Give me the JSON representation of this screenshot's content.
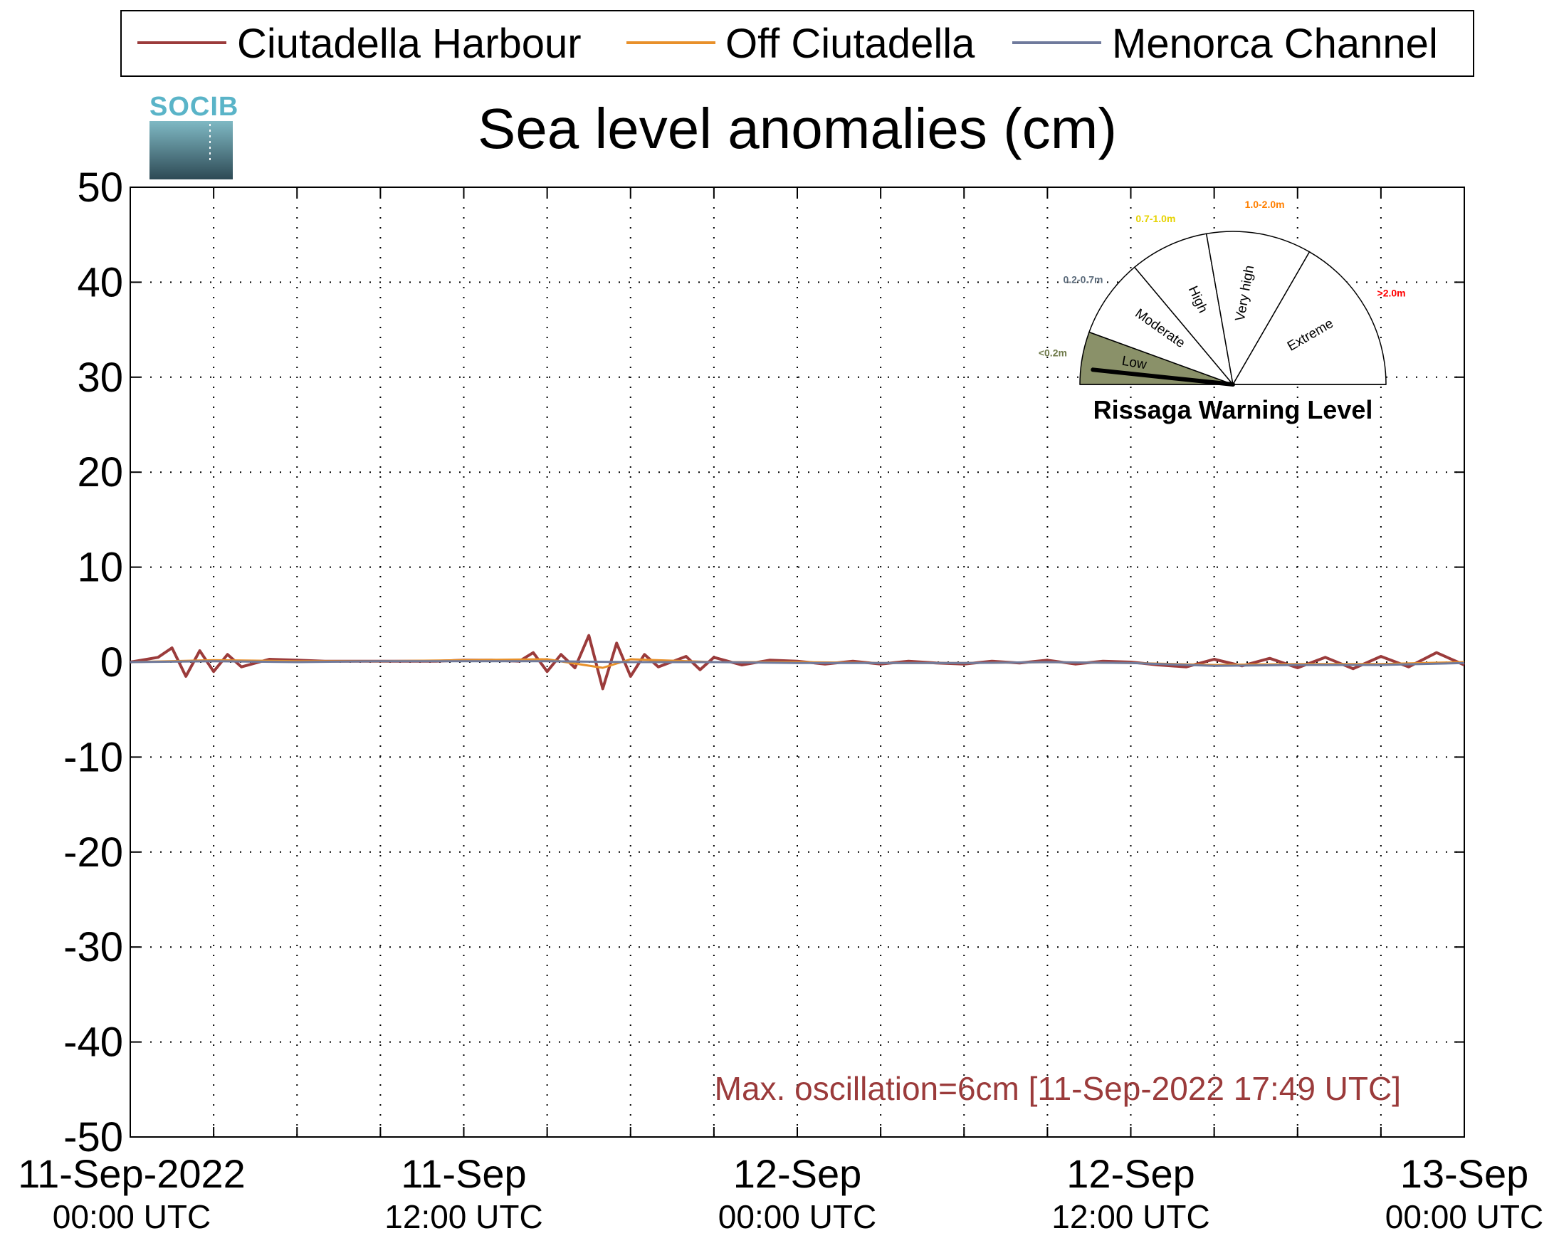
{
  "chart_data": {
    "type": "line",
    "title": "Sea level anomalies (cm)",
    "logo_text": "SOCIB",
    "ylim": [
      -50,
      50
    ],
    "yticks": [
      50,
      40,
      30,
      20,
      10,
      0,
      -10,
      -20,
      -30,
      -40,
      -50
    ],
    "ytick_labels": [
      "50",
      "40",
      "30",
      "20",
      "10",
      "0",
      "-10",
      "-20",
      "-30",
      "-40",
      "-50"
    ],
    "xlim_hours": [
      0,
      48
    ],
    "x_ticks": [
      {
        "hour": 0,
        "line1": "11-Sep-2022",
        "line2": "00:00 UTC"
      },
      {
        "hour": 12,
        "line1": "11-Sep",
        "line2": "12:00 UTC"
      },
      {
        "hour": 24,
        "line1": "12-Sep",
        "line2": "00:00 UTC"
      },
      {
        "hour": 36,
        "line1": "12-Sep",
        "line2": "12:00 UTC"
      },
      {
        "hour": 48,
        "line1": "13-Sep",
        "line2": "00:00 UTC"
      }
    ],
    "x_start_date": "11-Sep-2022 00:00 UTC",
    "grid": true,
    "grid_step_hours": 3,
    "legend_position": "top",
    "series": [
      {
        "name": "Ciutadella Harbour",
        "color": "#9b3b3b",
        "x": [
          0,
          1,
          1.5,
          2,
          2.5,
          3,
          3.5,
          4,
          5,
          6,
          7,
          8,
          9,
          10,
          11,
          12,
          13,
          14,
          14.5,
          15,
          15.5,
          16,
          16.5,
          17,
          17.5,
          18,
          18.5,
          19,
          20,
          20.5,
          21,
          22,
          23,
          24,
          25,
          26,
          27,
          28,
          29,
          30,
          31,
          32,
          33,
          34,
          35,
          36,
          37,
          38,
          39,
          40,
          41,
          42,
          43,
          44,
          45,
          46,
          47,
          48
        ],
        "y": [
          0,
          0.5,
          1.5,
          -1.5,
          1.2,
          -1,
          0.8,
          -0.5,
          0.3,
          0.2,
          0.1,
          0.1,
          0.1,
          0.1,
          0.1,
          0.2,
          0.2,
          0.1,
          1,
          -1,
          0.8,
          -0.6,
          2.8,
          -2.8,
          2,
          -1.5,
          0.8,
          -0.5,
          0.6,
          -0.8,
          0.5,
          -0.3,
          0.2,
          0.1,
          -0.2,
          0.1,
          -0.2,
          0.1,
          -0.1,
          -0.2,
          0.1,
          -0.1,
          0.2,
          -0.2,
          0.1,
          0,
          -0.3,
          -0.5,
          0.3,
          -0.4,
          0.4,
          -0.6,
          0.5,
          -0.7,
          0.6,
          -0.5,
          1,
          -0.3
        ]
      },
      {
        "name": "Off Ciutadella",
        "color": "#e8902a",
        "x": [
          0,
          3,
          6,
          9,
          12,
          15,
          17,
          18,
          21,
          24,
          27,
          30,
          33,
          36,
          39,
          42,
          45,
          48
        ],
        "y": [
          0,
          0.2,
          0.1,
          0.1,
          0.2,
          0.3,
          -0.6,
          0.3,
          0,
          0,
          -0.1,
          -0.1,
          0,
          -0.1,
          -0.3,
          -0.2,
          -0.2,
          0
        ]
      },
      {
        "name": "Menorca Channel",
        "color": "#6f7a9c",
        "x": [
          0,
          3,
          6,
          9,
          12,
          15,
          18,
          21,
          24,
          27,
          30,
          33,
          36,
          39,
          42,
          45,
          48
        ],
        "y": [
          0,
          0.1,
          0,
          0.1,
          0.1,
          0.1,
          0,
          0,
          -0.1,
          -0.1,
          -0.1,
          0,
          -0.1,
          -0.4,
          -0.3,
          -0.3,
          -0.1
        ]
      }
    ],
    "annotation": {
      "text": "Max. oscillation=6cm [11-Sep-2022 17:49 UTC]",
      "color": "#9b3b3b"
    },
    "gauge": {
      "title": "Rissaga Warning Level",
      "current_level": "Low",
      "sectors": [
        {
          "label": "Low",
          "range": "<0.2m",
          "range_color": "#6f7a4a",
          "fill": "#8a9169"
        },
        {
          "label": "Moderate",
          "range": "0.2-0.7m",
          "range_color": "#5a6a7a",
          "fill": "#ffffff"
        },
        {
          "label": "High",
          "range": "0.7-1.0m",
          "range_color": "#e6d200",
          "fill": "#ffffff"
        },
        {
          "label": "Very high",
          "range": "1.0-2.0m",
          "range_color": "#ff7f00",
          "fill": "#ffffff"
        },
        {
          "label": "Extreme",
          "range": ">2.0m",
          "range_color": "#ff0000",
          "fill": "#ffffff"
        }
      ]
    }
  }
}
